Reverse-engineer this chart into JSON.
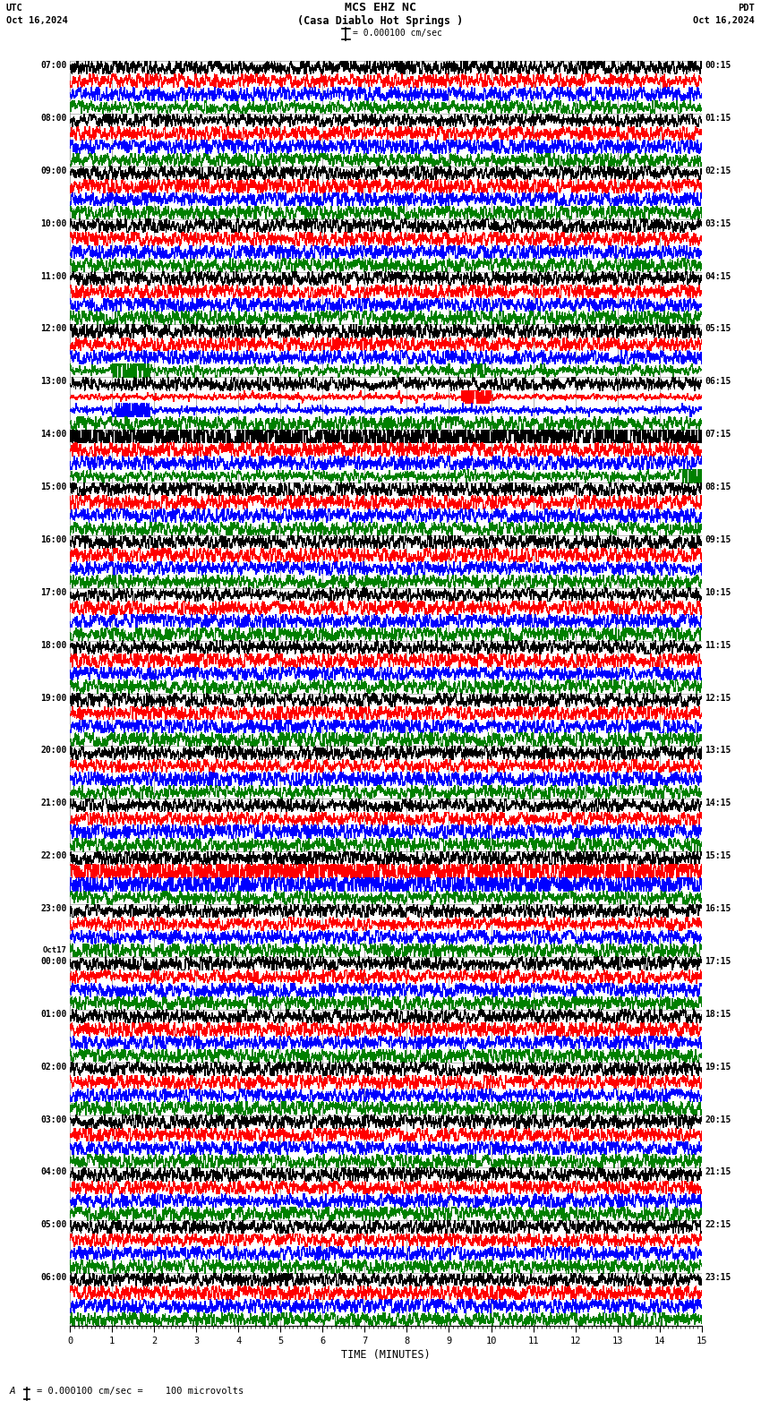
{
  "title_line1": "MCS EHZ NC",
  "title_line2": "(Casa Diablo Hot Springs )",
  "scale_text": "= 0.000100 cm/sec",
  "bottom_scale_text": "= 0.000100 cm/sec =    100 microvolts",
  "utc_label": "UTC",
  "pdt_label": "PDT",
  "date_left": "Oct 16,2024",
  "date_right": "Oct 16,2024",
  "xlabel": "TIME (MINUTES)",
  "xlim": [
    0,
    15
  ],
  "xticks_major": [
    0,
    1,
    2,
    3,
    4,
    5,
    6,
    7,
    8,
    9,
    10,
    11,
    12,
    13,
    14,
    15
  ],
  "bg_color": "#ffffff",
  "trace_colors": [
    "black",
    "red",
    "blue",
    "green"
  ],
  "num_rows": 24,
  "traces_per_row": 4,
  "row_labels_left": [
    "07:00",
    "08:00",
    "09:00",
    "10:00",
    "11:00",
    "12:00",
    "13:00",
    "14:00",
    "15:00",
    "16:00",
    "17:00",
    "18:00",
    "19:00",
    "20:00",
    "21:00",
    "22:00",
    "23:00",
    "Oct17\n00:00",
    "01:00",
    "02:00",
    "03:00",
    "04:00",
    "05:00",
    "06:00"
  ],
  "row_labels_right": [
    "00:15",
    "01:15",
    "02:15",
    "03:15",
    "04:15",
    "05:15",
    "06:15",
    "07:15",
    "08:15",
    "09:15",
    "10:15",
    "11:15",
    "12:15",
    "13:15",
    "14:15",
    "15:15",
    "16:15",
    "17:15",
    "18:15",
    "19:15",
    "20:15",
    "21:15",
    "22:15",
    "23:15"
  ]
}
